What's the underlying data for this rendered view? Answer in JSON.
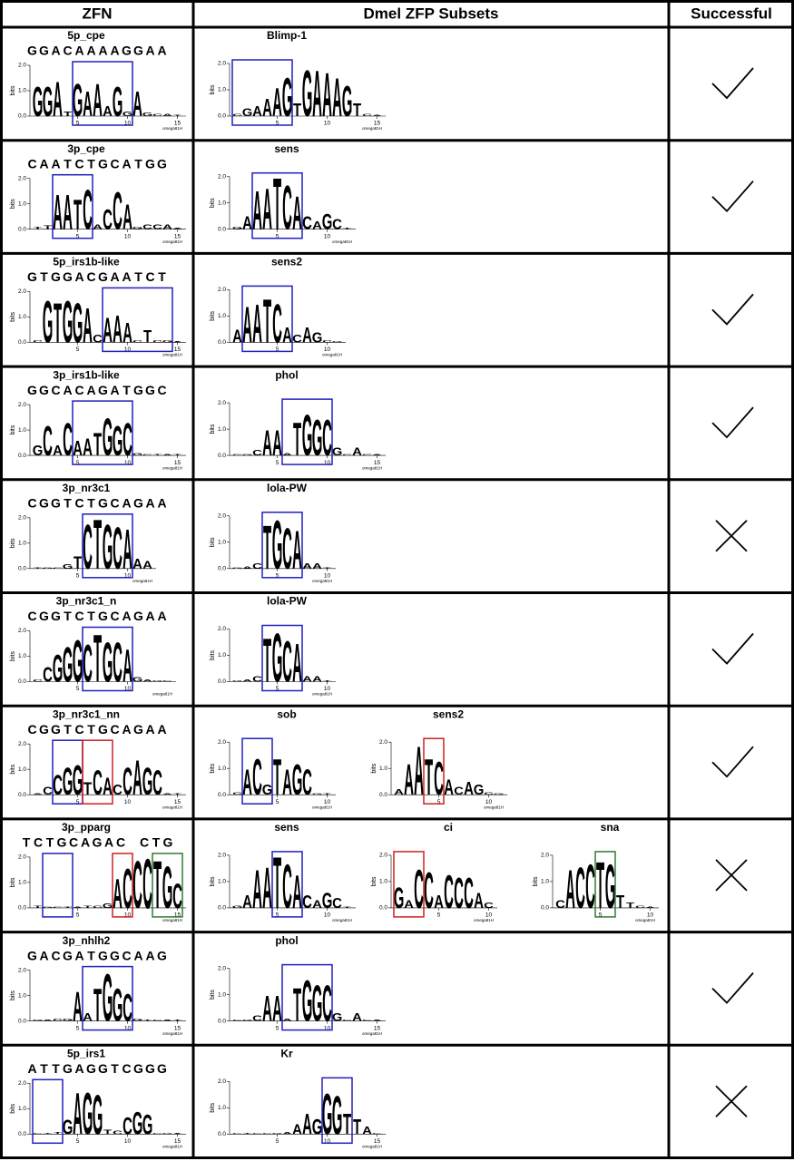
{
  "header": {
    "zfn": "ZFN",
    "subsets": "Dmel ZFP Subsets",
    "successful": "Successful"
  },
  "logo_axis": {
    "ylabel": "bits",
    "ylim": [
      0,
      2
    ],
    "yticks": [
      {
        "value": 0,
        "label": "0.0"
      },
      {
        "value": 1,
        "label": "1.0"
      },
      {
        "value": 2,
        "label": "2.0"
      }
    ],
    "xticks": [
      5,
      10,
      15
    ],
    "note": "omega81H"
  },
  "letter_colors": {
    "A": "#2a8a2a",
    "C": "#1515d0",
    "G": "#f0a500",
    "T": "#e01010"
  },
  "rows": [
    {
      "name": "5p_cpe",
      "sequence": "GGACAAAAGGAA",
      "result": "check",
      "zfn_logo": {
        "letters": "GGATGAAAGGAGCAT",
        "heights": [
          1.2,
          1.2,
          1.4,
          0.2,
          1.3,
          1.0,
          1.3,
          0.4,
          1.2,
          0.2,
          1.0,
          0.15,
          0.1,
          0.1,
          0.05
        ],
        "boxes": [
          {
            "from": 5,
            "to": 10,
            "color": "#2020c0"
          }
        ]
      },
      "subsets": [
        {
          "name": "Blimp-1",
          "letters": "CGAAAGTGAAAGTCA",
          "heights": [
            0.1,
            0.3,
            0.4,
            0.7,
            1.1,
            1.5,
            0.5,
            1.8,
            1.8,
            1.7,
            1.5,
            1.2,
            0.5,
            0.1,
            0.05
          ],
          "boxes": [
            {
              "from": 1,
              "to": 6,
              "color": "#2020c0"
            }
          ]
        }
      ]
    },
    {
      "name": "3p_cpe",
      "sequence": "CAATCTGCATGG",
      "result": "check",
      "zfn_logo": {
        "letters": "TTAATCACCAGCCAA",
        "heights": [
          0.1,
          0.15,
          1.4,
          1.4,
          1.2,
          1.6,
          0.2,
          0.8,
          1.5,
          1.0,
          0.1,
          0.2,
          0.2,
          0.2,
          0.05
        ],
        "boxes": [
          {
            "from": 3,
            "to": 6,
            "color": "#2020c0"
          }
        ]
      },
      "subsets": [
        {
          "name": "sens",
          "letters": "GAAATCACAGCT",
          "heights": [
            0.1,
            0.5,
            1.5,
            1.6,
            2.0,
            1.7,
            1.3,
            0.5,
            0.3,
            0.6,
            0.4,
            0.05
          ],
          "boxes": [
            {
              "from": 3,
              "to": 7,
              "color": "#2020c0"
            }
          ]
        }
      ]
    },
    {
      "name": "5p_irs1b-like",
      "sequence": "GTGGACGAATCT",
      "result": "check",
      "zfn_logo": {
        "letters": "CGTGGACAAACTCGA",
        "heights": [
          0.1,
          1.7,
          1.6,
          1.7,
          1.6,
          1.4,
          0.3,
          1.0,
          1.1,
          0.8,
          0.1,
          0.5,
          0.1,
          0.1,
          0.05
        ],
        "boxes": [
          {
            "from": 8,
            "to": 14,
            "color": "#2020c0"
          }
        ]
      },
      "subsets": [
        {
          "name": "sens2",
          "letters": "AAATCACAGCG",
          "heights": [
            0.5,
            1.4,
            1.5,
            1.7,
            1.5,
            0.6,
            0.3,
            0.6,
            0.4,
            0.1,
            0.05
          ],
          "boxes": [
            {
              "from": 2,
              "to": 6,
              "color": "#2020c0"
            }
          ]
        }
      ]
    },
    {
      "name": "3p_irs1b-like",
      "sequence": "GGCACAGATGGC",
      "result": "check",
      "zfn_logo": {
        "letters": "GCACAATGGCGCTAT",
        "heights": [
          0.4,
          1.2,
          0.4,
          1.3,
          0.6,
          0.7,
          0.9,
          1.5,
          1.2,
          1.3,
          0.1,
          0.05,
          0.05,
          0.05,
          0.05
        ],
        "boxes": [
          {
            "from": 5,
            "to": 10,
            "color": "#2020c0"
          }
        ]
      },
      "subsets": [
        {
          "name": "phol",
          "letters": "CGCAAATGGCGCACA",
          "heights": [
            0.05,
            0.05,
            0.2,
            1.0,
            1.0,
            0.1,
            1.3,
            1.6,
            1.4,
            1.4,
            0.3,
            0.05,
            0.3,
            0.05,
            0.05
          ],
          "boxes": [
            {
              "from": 6,
              "to": 10,
              "color": "#2020c0"
            }
          ]
        }
      ]
    },
    {
      "name": "3p_nr3c1",
      "sequence": "CGGTCTGCAGAA",
      "result": "cross",
      "zfn_logo": {
        "letters": "TGCGTCTGCAAA",
        "heights": [
          0.05,
          0.05,
          0.05,
          0.2,
          0.5,
          1.8,
          2.0,
          1.8,
          1.7,
          1.6,
          0.4,
          0.3
        ],
        "boxes": [
          {
            "from": 6,
            "to": 10,
            "color": "#2020c0"
          }
        ]
      },
      "subsets": [
        {
          "name": "lola-PW",
          "letters": "GACTGCAAAT",
          "heights": [
            0.05,
            0.1,
            0.2,
            1.7,
            1.9,
            1.6,
            1.5,
            0.2,
            0.2,
            0.05
          ],
          "boxes": [
            {
              "from": 4,
              "to": 7,
              "color": "#2020c0"
            }
          ]
        }
      ]
    },
    {
      "name": "3p_nr3c1_n",
      "sequence": "CGGTCTGCAGAA",
      "result": "check",
      "zfn_logo": {
        "letters": "CCGGGCTGCAGAGC",
        "heights": [
          0.1,
          0.6,
          1.1,
          1.4,
          1.7,
          1.5,
          1.9,
          1.6,
          1.6,
          1.3,
          0.2,
          0.1,
          0.05,
          0.05
        ],
        "boxes": [
          {
            "from": 6,
            "to": 10,
            "color": "#2020c0"
          }
        ]
      },
      "subsets": [
        {
          "name": "lola-PW",
          "letters": "GACTGCAAAT",
          "heights": [
            0.05,
            0.1,
            0.2,
            1.7,
            1.9,
            1.6,
            1.5,
            0.2,
            0.2,
            0.05
          ],
          "boxes": [
            {
              "from": 4,
              "to": 7,
              "color": "#2020c0"
            }
          ]
        }
      ]
    },
    {
      "name": "3p_nr3c1_nn",
      "sequence": "CGGTCTGCAGAA",
      "result": "check",
      "zfn_logo": {
        "letters": "ACCGGTCACCAGCAT",
        "heights": [
          0.05,
          0.3,
          0.8,
          1.1,
          1.2,
          0.5,
          1.0,
          0.7,
          0.4,
          1.1,
          1.4,
          1.1,
          1.0,
          0.05,
          0.05
        ],
        "boxes": [
          {
            "from": 3,
            "to": 5,
            "color": "#2020c0"
          },
          {
            "from": 6,
            "to": 8,
            "color": "#d02020"
          }
        ]
      },
      "subsets": [
        {
          "name": "sob",
          "letters": "CACGTAGCGT",
          "heights": [
            0.1,
            1.0,
            1.4,
            0.4,
            1.4,
            1.0,
            1.2,
            1.0,
            0.05,
            0.05
          ],
          "boxes": [
            {
              "from": 2,
              "to": 4,
              "color": "#2020c0"
            }
          ]
        },
        {
          "name": "sens2",
          "letters": "AAATCACAGCG",
          "heights": [
            0.2,
            1.2,
            1.9,
            1.4,
            1.3,
            0.6,
            0.3,
            0.5,
            0.4,
            0.1,
            0.05
          ],
          "boxes": [
            {
              "from": 4,
              "to": 5,
              "color": "#d02020"
            }
          ]
        }
      ]
    },
    {
      "name": "3p_pparg",
      "sequence": "TCTGCAGAC CTG",
      "result": "cross",
      "zfn_logo": {
        "letters": "TGCTATCGACCCTGC",
        "heights": [
          0.1,
          0.05,
          0.05,
          0.05,
          0.05,
          0.1,
          0.1,
          0.2,
          1.2,
          1.6,
          1.9,
          2.0,
          1.9,
          1.7,
          1.0
        ],
        "boxes": [
          {
            "from": 2,
            "to": 4,
            "color": "#2020c0"
          },
          {
            "from": 9,
            "to": 10,
            "color": "#d02020"
          },
          {
            "from": 13,
            "to": 15,
            "color": "#2e7d32"
          }
        ]
      },
      "subsets": [
        {
          "name": "sens",
          "letters": "GAAATCACAGCT",
          "heights": [
            0.1,
            0.5,
            1.5,
            1.6,
            2.0,
            1.7,
            1.3,
            0.5,
            0.3,
            0.6,
            0.4,
            0.05
          ],
          "boxes": [
            {
              "from": 5,
              "to": 7,
              "color": "#2020c0"
            }
          ]
        },
        {
          "name": "ci",
          "letters": "GACCACCCAC",
          "heights": [
            0.8,
            0.3,
            1.5,
            1.4,
            0.5,
            1.3,
            1.2,
            1.2,
            0.6,
            0.2
          ],
          "boxes": [
            {
              "from": 1,
              "to": 3,
              "color": "#d02020"
            }
          ]
        },
        {
          "name": "sna",
          "letters": "CACCTGTTCA",
          "heights": [
            0.3,
            1.5,
            1.6,
            1.7,
            1.8,
            1.7,
            0.5,
            0.2,
            0.1,
            0.05
          ],
          "boxes": [
            {
              "from": 5,
              "to": 6,
              "color": "#2e7d32"
            }
          ]
        }
      ]
    },
    {
      "name": "3p_nhlh2",
      "sequence": "GACGATGGCAAG",
      "result": "check",
      "zfn_logo": {
        "letters": "GACGAATGGCGTCAT",
        "heights": [
          0.05,
          0.05,
          0.1,
          0.1,
          1.2,
          0.3,
          1.3,
          1.9,
          1.3,
          1.1,
          0.1,
          0.05,
          0.05,
          0.05,
          0.05
        ],
        "boxes": [
          {
            "from": 6,
            "to": 10,
            "color": "#2020c0"
          }
        ]
      },
      "subsets": [
        {
          "name": "phol",
          "letters": "CGCAAATGGCGCACA",
          "heights": [
            0.05,
            0.05,
            0.2,
            1.0,
            1.0,
            0.1,
            1.3,
            1.6,
            1.4,
            1.4,
            0.3,
            0.05,
            0.3,
            0.05,
            0.05
          ],
          "boxes": [
            {
              "from": 6,
              "to": 10,
              "color": "#2020c0"
            }
          ]
        }
      ]
    },
    {
      "name": "5p_irs1",
      "sequence": "ATTGAGGTCGGG",
      "result": "cross",
      "zfn_logo": {
        "letters": "CTTGAGGTCCGGCGA",
        "heights": [
          0.05,
          0.05,
          0.1,
          0.6,
          1.7,
          1.7,
          1.6,
          0.2,
          0.15,
          0.7,
          0.9,
          0.8,
          0.05,
          0.05,
          0.05
        ],
        "boxes": [
          {
            "from": 1,
            "to": 3,
            "color": "#2020c0"
          }
        ]
      },
      "subsets": [
        {
          "name": "Kr",
          "letters": "CTCCGAAAGGGTTAC",
          "heights": [
            0.05,
            0.05,
            0.05,
            0.05,
            0.05,
            0.1,
            0.4,
            0.8,
            0.6,
            1.6,
            1.5,
            0.8,
            0.6,
            0.3,
            0.05
          ],
          "boxes": [
            {
              "from": 10,
              "to": 12,
              "color": "#2020c0"
            }
          ]
        }
      ]
    }
  ]
}
